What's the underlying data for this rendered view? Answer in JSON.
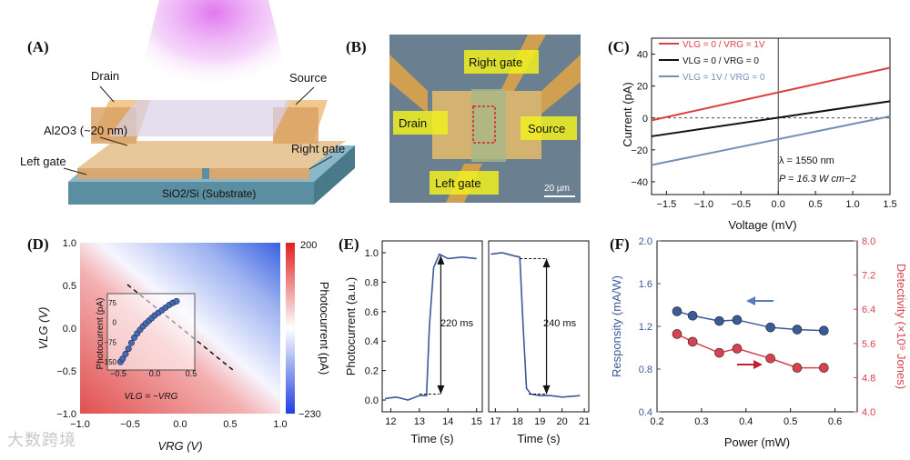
{
  "panels": {
    "A": {
      "label": "(A)",
      "drain": "Drain",
      "source": "Source",
      "al2o3": "Al2O3 (~20 nm)",
      "right_gate": "Right gate",
      "left_gate": "Left gate",
      "substrate": "SiO2/Si (Substrate)"
    },
    "B": {
      "label": "(B)",
      "right_gate": "Right gate",
      "drain": "Drain",
      "source": "Source",
      "left_gate": "Left gate",
      "scale": "20 µm"
    },
    "C": {
      "label": "(C)",
      "legend": [
        "VLG = 0 / VRG = 1V",
        "VLG = 0 / VRG = 0",
        "VLG = 1V / VRG = 0"
      ],
      "note_lambda": "λ = 1550 nm",
      "note_P": "P = 16.3 W cm−2"
    },
    "D": {
      "label": "(D)",
      "cbar_label": "Photocurrent (pA)",
      "cbar_max": "200",
      "cbar_min": "−230",
      "inset_ylabel": "Photocurrent (pA)",
      "inset_xlabel": "VLG = −VRG"
    },
    "E": {
      "label": "(E)",
      "ylabel": "Photocurrent (a.u.)",
      "rise": "220 ms",
      "fall": "240 ms"
    },
    "F": {
      "label": "(F)"
    }
  },
  "chart_data": [
    {
      "type": "line",
      "panel": "C",
      "xlabel": "Voltage (mV)",
      "ylabel": "Current (pA)",
      "xlim": [
        -1.7,
        1.5
      ],
      "ylim": [
        -48,
        50
      ],
      "xticks": [
        -1.5,
        -1.0,
        -0.5,
        0.0,
        0.5,
        1.0,
        1.5
      ],
      "yticks": [
        -40,
        -20,
        0,
        20,
        40
      ],
      "series": [
        {
          "name": "VLG = 0 / VRG = 1V",
          "color": "#d94040",
          "x": [
            -1.7,
            1.5
          ],
          "y": [
            -1.5,
            31.5
          ]
        },
        {
          "name": "VLG = 0 / VRG = 0",
          "color": "#111111",
          "x": [
            -1.7,
            1.5
          ],
          "y": [
            -11.5,
            10.5
          ]
        },
        {
          "name": "VLG = 1V / VRG = 0",
          "color": "#7090b8",
          "x": [
            -1.7,
            1.5
          ],
          "y": [
            -29.5,
            1.0
          ]
        }
      ]
    },
    {
      "type": "heatmap",
      "panel": "D",
      "xlabel": "VRG (V)",
      "ylabel": "VLG (V)",
      "xlim": [
        -1.0,
        1.0
      ],
      "ylim": [
        -1.0,
        1.0
      ],
      "xticks": [
        -1.0,
        -0.5,
        0.0,
        0.5,
        1.0
      ],
      "yticks": [
        -1.0,
        -0.5,
        0.0,
        0.5,
        1.0
      ],
      "colorbar": {
        "min": -230,
        "max": 200,
        "label": "Photocurrent (pA)"
      },
      "inset": {
        "type": "scatter",
        "xlabel": "VLG = −VRG",
        "ylabel": "Photocurrent (pA)",
        "xlim": [
          -0.5,
          0.5
        ],
        "ylim": [
          -160,
          95
        ],
        "xticks": [
          -0.5,
          0.0,
          0.5
        ],
        "yticks": [
          -150,
          -75,
          0,
          75
        ],
        "x": [
          -0.47,
          -0.44,
          -0.4,
          -0.36,
          -0.32,
          -0.28,
          -0.24,
          -0.2,
          -0.16,
          -0.12,
          -0.08,
          -0.04,
          0.0,
          0.05,
          0.1,
          0.15,
          0.2,
          0.25,
          0.3
        ],
        "y": [
          -150,
          -138,
          -120,
          -100,
          -78,
          -58,
          -42,
          -28,
          -15,
          -4,
          6,
          16,
          26,
          36,
          46,
          56,
          66,
          74,
          80
        ]
      }
    },
    {
      "type": "line",
      "panel": "E-left",
      "xlabel": "Time (s)",
      "ylabel": "Photocurrent (a.u.)",
      "xlim": [
        11.7,
        15.2
      ],
      "ylim": [
        -0.08,
        1.08
      ],
      "xticks": [
        12,
        13,
        14,
        15
      ],
      "yticks": [
        0.0,
        0.2,
        0.4,
        0.6,
        0.8,
        1.0
      ],
      "series": [
        {
          "name": "rise",
          "x": [
            11.8,
            12.2,
            12.6,
            13.0,
            13.25,
            13.35,
            13.5,
            13.7,
            14.0,
            14.5,
            15.0
          ],
          "y": [
            0.01,
            0.02,
            0.0,
            0.03,
            0.03,
            0.5,
            0.9,
            0.99,
            0.96,
            0.97,
            0.96
          ]
        }
      ],
      "annotation": "220 ms"
    },
    {
      "type": "line",
      "panel": "E-right",
      "xlabel": "Time (s)",
      "xlim": [
        16.7,
        21.2
      ],
      "ylim": [
        -0.08,
        1.08
      ],
      "xticks": [
        17,
        18,
        19,
        20,
        21
      ],
      "series": [
        {
          "name": "fall",
          "x": [
            16.8,
            17.3,
            17.8,
            18.1,
            18.25,
            18.4,
            18.6,
            19.0,
            19.5,
            20.0,
            20.8
          ],
          "y": [
            0.99,
            1.0,
            0.98,
            0.97,
            0.5,
            0.08,
            0.04,
            0.03,
            0.03,
            0.02,
            0.03
          ]
        }
      ],
      "annotation": "240 ms"
    },
    {
      "type": "scatter",
      "panel": "F",
      "xlabel": "Power (mW)",
      "ylabel": "Responsity (mA/W)",
      "ylabel_right": "Detectivity (×10⁹ Jones)",
      "xlim": [
        0.2,
        0.65
      ],
      "ylim": [
        0.4,
        2.0
      ],
      "ylim_right": [
        4.0,
        8.0
      ],
      "xticks": [
        0.2,
        0.3,
        0.4,
        0.5,
        0.6
      ],
      "yticks": [
        0.4,
        0.8,
        1.2,
        1.6,
        2.0
      ],
      "yticks_right": [
        4.0,
        4.8,
        5.6,
        6.4,
        7.2,
        8.0
      ],
      "series": [
        {
          "name": "Responsity",
          "axis": "left",
          "color": "#3a5a9a",
          "x": [
            0.245,
            0.28,
            0.34,
            0.38,
            0.455,
            0.515,
            0.575
          ],
          "y": [
            1.34,
            1.3,
            1.25,
            1.26,
            1.19,
            1.17,
            1.16
          ]
        },
        {
          "name": "Detectivity",
          "axis": "right",
          "color": "#d94050",
          "x": [
            0.245,
            0.28,
            0.34,
            0.38,
            0.455,
            0.515,
            0.575
          ],
          "y": [
            5.82,
            5.64,
            5.38,
            5.48,
            5.25,
            5.03,
            5.03
          ]
        }
      ]
    }
  ],
  "watermark": "大数跨境"
}
